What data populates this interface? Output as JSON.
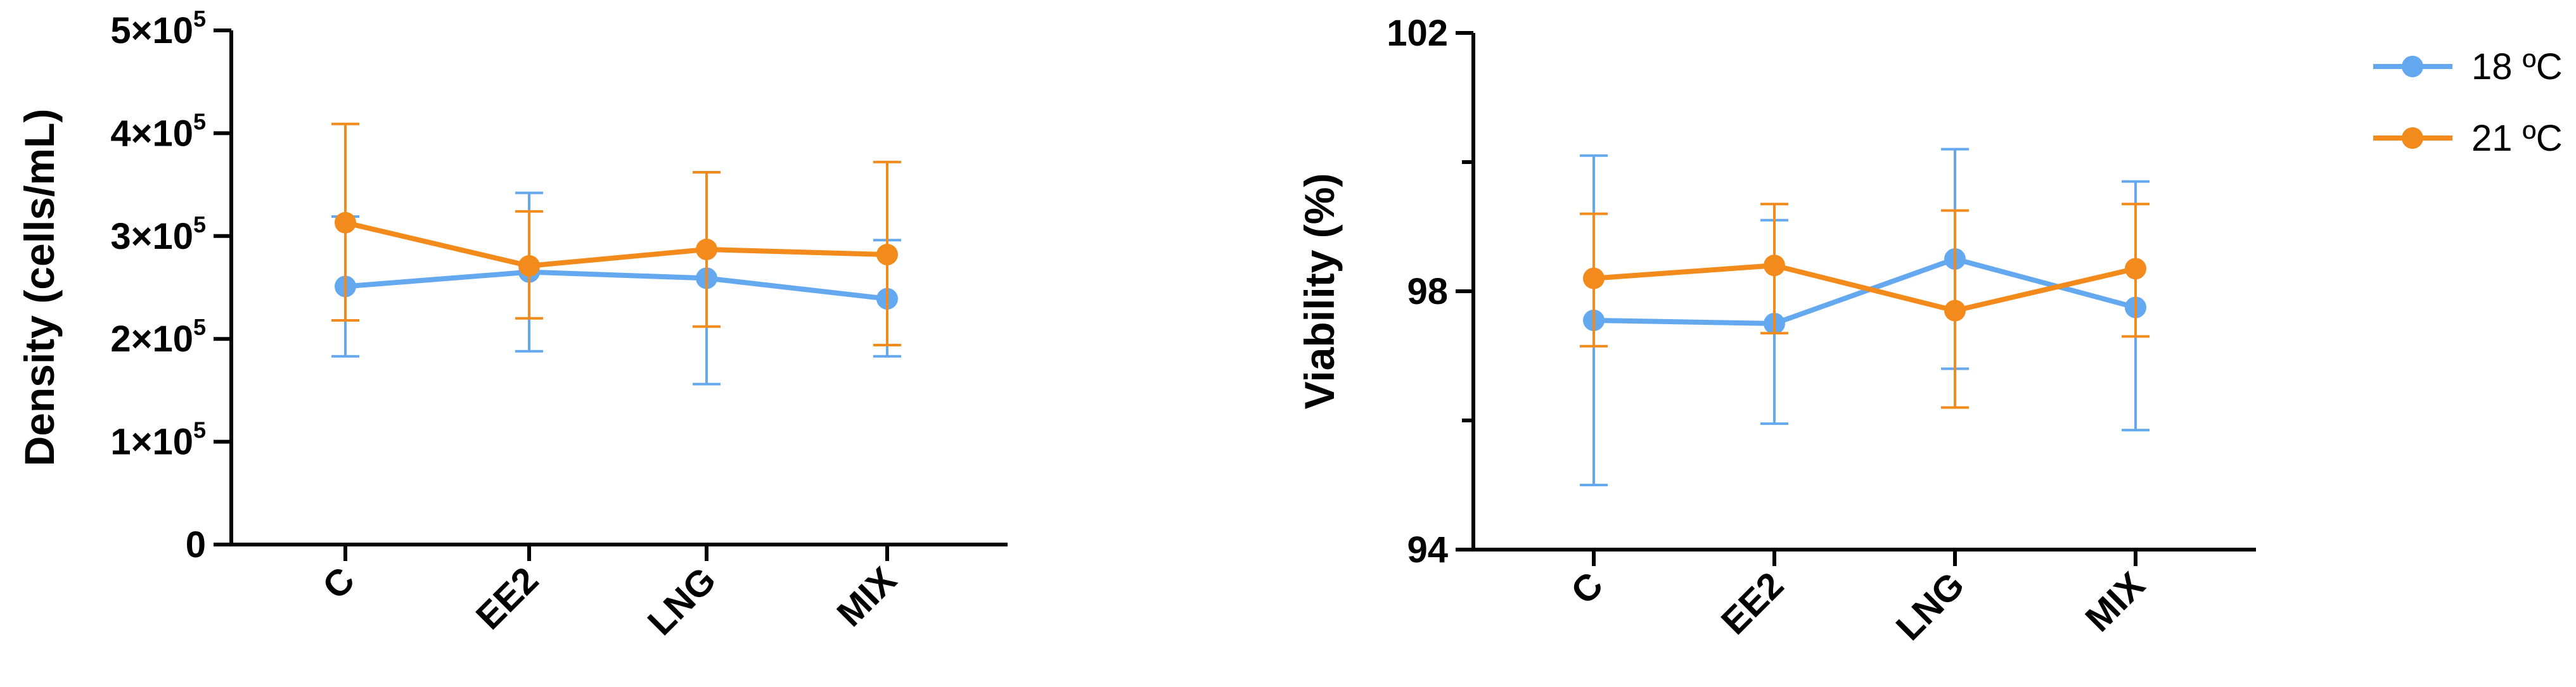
{
  "colors": {
    "18C": "#64a8f0",
    "21C": "#f28a1c",
    "axis": "#000000"
  },
  "legend": {
    "placement": "top-right",
    "items": [
      {
        "key": "18C",
        "label": "18 ºC"
      },
      {
        "key": "21C",
        "label": "21 ºC"
      }
    ]
  },
  "chart_data": [
    {
      "type": "line",
      "categories": [
        "C",
        "EE2",
        "LNG",
        "MIX"
      ],
      "ylabel": "Density (cells/mL)",
      "ylim": [
        0,
        500000
      ],
      "yticks": [
        {
          "value": 0,
          "label": "0"
        },
        {
          "value": 100000,
          "mant": "1×10",
          "exp": "5"
        },
        {
          "value": 200000,
          "mant": "2×10",
          "exp": "5"
        },
        {
          "value": 300000,
          "mant": "3×10",
          "exp": "5"
        },
        {
          "value": 400000,
          "mant": "4×10",
          "exp": "5"
        },
        {
          "value": 500000,
          "mant": "5×10",
          "exp": "5"
        }
      ],
      "grid": false,
      "series": [
        {
          "key": "18C",
          "name": "18 ºC",
          "values": [
            251000,
            265000,
            259000,
            239000
          ],
          "err_low": [
            183000,
            188000,
            156000,
            183000
          ],
          "err_high": [
            319000,
            342000,
            362000,
            296000
          ]
        },
        {
          "key": "21C",
          "name": "21 ºC",
          "values": [
            313000,
            271000,
            287000,
            282000
          ],
          "err_low": [
            218000,
            220000,
            212000,
            194000
          ],
          "err_high": [
            409000,
            324000,
            362000,
            372000
          ]
        }
      ]
    },
    {
      "type": "line",
      "categories": [
        "C",
        "EE2",
        "LNG",
        "MIX"
      ],
      "ylabel": "Viability (%)",
      "ylim": [
        94,
        102
      ],
      "yticks": [
        {
          "value": 94,
          "label": "94"
        },
        {
          "value": 98,
          "label": "98"
        },
        {
          "value": 102,
          "label": "102"
        }
      ],
      "minor_yticks": [
        96,
        100
      ],
      "grid": false,
      "series": [
        {
          "key": "18C",
          "name": "18 ºC",
          "values": [
            97.55,
            97.5,
            98.5,
            97.75
          ],
          "err_low": [
            95.0,
            95.95,
            96.8,
            95.85
          ],
          "err_high": [
            100.1,
            99.1,
            100.2,
            99.7
          ]
        },
        {
          "key": "21C",
          "name": "21 ºC",
          "values": [
            98.2,
            98.4,
            97.7,
            98.35
          ],
          "err_low": [
            97.15,
            97.35,
            96.2,
            97.3
          ],
          "err_high": [
            99.2,
            99.35,
            99.25,
            99.35
          ]
        }
      ]
    }
  ]
}
